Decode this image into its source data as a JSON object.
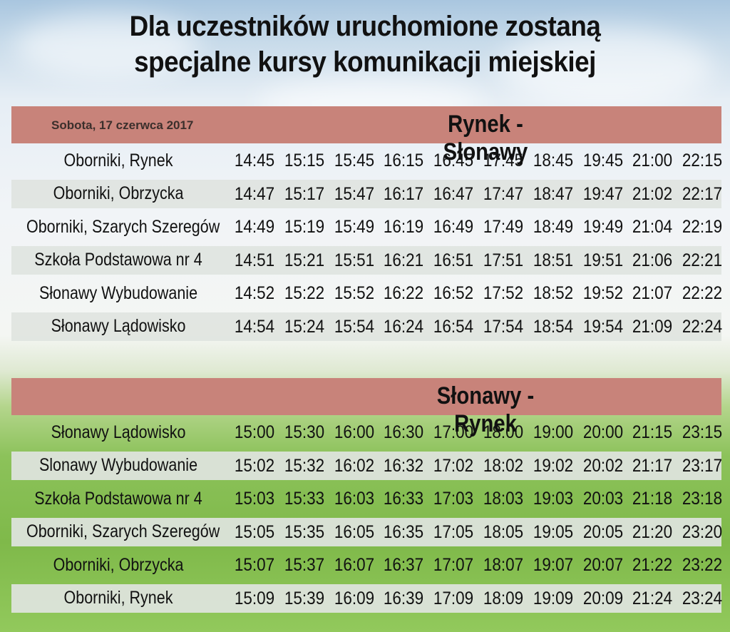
{
  "title": {
    "line1": "Dla uczestników uruchomione zostaną",
    "line2": "specjalne kursy komunikacji miejskiej"
  },
  "tables": [
    {
      "date": "Sobota, 17 czerwca 2017",
      "route": "Rynek - Słonawy",
      "rows": [
        {
          "stop": "Oborniki, Rynek",
          "times": [
            "14:45",
            "15:15",
            "15:45",
            "16:15",
            "16:45",
            "17:45",
            "18:45",
            "19:45",
            "21:00",
            "22:15"
          ]
        },
        {
          "stop": "Oborniki, Obrzycka",
          "times": [
            "14:47",
            "15:17",
            "15:47",
            "16:17",
            "16:47",
            "17:47",
            "18:47",
            "19:47",
            "21:02",
            "22:17"
          ]
        },
        {
          "stop": "Oborniki, Szarych Szeregów",
          "times": [
            "14:49",
            "15:19",
            "15:49",
            "16:19",
            "16:49",
            "17:49",
            "18:49",
            "19:49",
            "21:04",
            "22:19"
          ]
        },
        {
          "stop": "Szkoła Podstawowa nr 4",
          "times": [
            "14:51",
            "15:21",
            "15:51",
            "16:21",
            "16:51",
            "17:51",
            "18:51",
            "19:51",
            "21:06",
            "22:21"
          ]
        },
        {
          "stop": "Słonawy Wybudowanie",
          "times": [
            "14:52",
            "15:22",
            "15:52",
            "16:22",
            "16:52",
            "17:52",
            "18:52",
            "19:52",
            "21:07",
            "22:22"
          ]
        },
        {
          "stop": "Słonawy Lądowisko",
          "times": [
            "14:54",
            "15:24",
            "15:54",
            "16:24",
            "16:54",
            "17:54",
            "18:54",
            "19:54",
            "21:09",
            "22:24"
          ]
        }
      ]
    },
    {
      "date": "",
      "route": "Słonawy - Rynek",
      "rows": [
        {
          "stop": "Słonawy Lądowisko",
          "times": [
            "15:00",
            "15:30",
            "16:00",
            "16:30",
            "17:00",
            "18:00",
            "19:00",
            "20:00",
            "21:15",
            "23:15"
          ]
        },
        {
          "stop": "Slonawy Wybudowanie",
          "times": [
            "15:02",
            "15:32",
            "16:02",
            "16:32",
            "17:02",
            "18:02",
            "19:02",
            "20:02",
            "21:17",
            "23:17"
          ]
        },
        {
          "stop": "Szkoła Podstawowa nr 4",
          "times": [
            "15:03",
            "15:33",
            "16:03",
            "16:33",
            "17:03",
            "18:03",
            "19:03",
            "20:03",
            "21:18",
            "23:18"
          ]
        },
        {
          "stop": "Oborniki, Szarych Szeregów",
          "times": [
            "15:05",
            "15:35",
            "16:05",
            "16:35",
            "17:05",
            "18:05",
            "19:05",
            "20:05",
            "21:20",
            "23:20"
          ]
        },
        {
          "stop": "Oborniki, Obrzycka",
          "times": [
            "15:07",
            "15:37",
            "16:07",
            "16:37",
            "17:07",
            "18:07",
            "19:07",
            "20:07",
            "21:22",
            "23:22"
          ]
        },
        {
          "stop": "Oborniki, Rynek",
          "times": [
            "15:09",
            "15:39",
            "16:09",
            "16:39",
            "17:09",
            "18:09",
            "19:09",
            "20:09",
            "21:24",
            "23:24"
          ]
        }
      ]
    }
  ],
  "colors": {
    "header_band": "#c8837a",
    "row_shade": "#dfe4e0"
  }
}
